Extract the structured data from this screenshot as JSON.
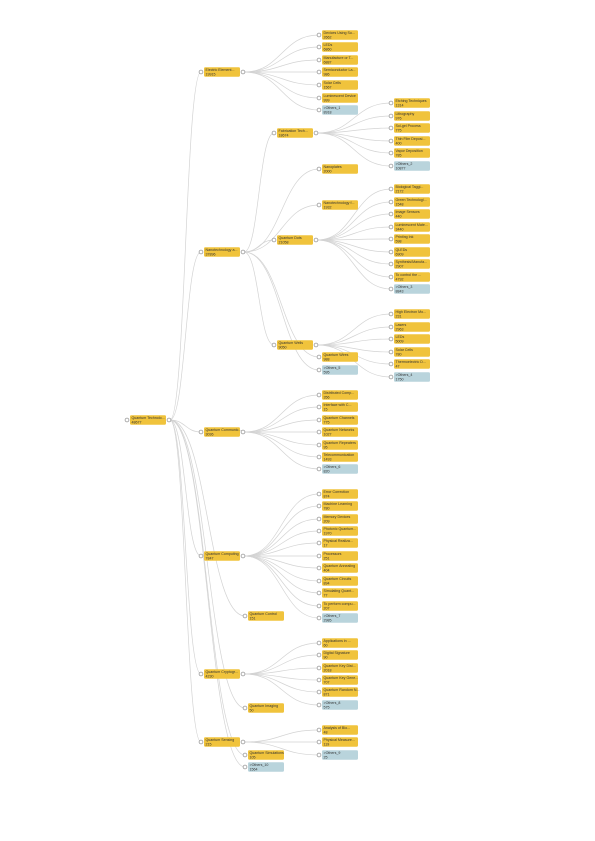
{
  "colors": {
    "node": "#f0c33c",
    "others_node": "#b9d4dc",
    "edge": "#d3d3d3",
    "dot_stroke": "#9a9a9a"
  },
  "tree": {
    "label": "Quantum Technolo...",
    "value": "48677",
    "children": [
      {
        "label": "Electric Element...",
        "value": "19915",
        "children": [
          {
            "label": "Devices Using Su...",
            "value": "2662"
          },
          {
            "label": "LEDs",
            "value": "6860"
          },
          {
            "label": "Manufacture or T...",
            "value": "6887"
          },
          {
            "label": "Semiconductor La...",
            "value": "986"
          },
          {
            "label": "Solar Cells",
            "value": "1567"
          },
          {
            "label": "Luminescent Device",
            "value": "999"
          },
          {
            "label": ">Others_1",
            "value": "8918",
            "others": true
          }
        ]
      },
      {
        "label": "Nanotechnology a...",
        "value": "37896",
        "children": [
          {
            "label": "Fabrication Tech...",
            "value": "18674",
            "children": [
              {
                "label": "Etching Techniques",
                "value": "1314"
              },
              {
                "label": "Lithography",
                "value": "976"
              },
              {
                "label": "Sol-gel Process",
                "value": "775"
              },
              {
                "label": "Thin Film Deposi...",
                "value": "400"
              },
              {
                "label": "Vapor Deposition",
                "value": "785"
              },
              {
                "label": ">Others_2",
                "value": "10877",
                "others": true
              }
            ]
          },
          {
            "label": "Nanoplates",
            "value": "2000"
          },
          {
            "label": "Nanotechnology f...",
            "value": "1932"
          },
          {
            "label": "Quantum Dots",
            "value": "21058",
            "children": [
              {
                "label": "Biological Taggi...",
                "value": "2172"
              },
              {
                "label": "Green Technologi...",
                "value": "1548"
              },
              {
                "label": "Image Sensors",
                "value": "440"
              },
              {
                "label": "Luminescent Mate...",
                "value": "3440"
              },
              {
                "label": "Printing Ink",
                "value": "598"
              },
              {
                "label": "QLEDs",
                "value": "6909"
              },
              {
                "label": "Synthesis/Manufa...",
                "value": "2907"
              },
              {
                "label": "To control the ...",
                "value": "4792"
              },
              {
                "label": ">Others_3",
                "value": "8843",
                "others": true
              }
            ]
          },
          {
            "label": "Quantum Wells",
            "value": "9050",
            "children": [
              {
                "label": "High Electron Mo...",
                "value": "231"
              },
              {
                "label": "Lasers",
                "value": "2963"
              },
              {
                "label": "LEDs",
                "value": "5009"
              },
              {
                "label": "Solar Cells",
                "value": "780"
              },
              {
                "label": "Thermoelectric D...",
                "value": "47"
              },
              {
                "label": ">Others_4",
                "value": "1750",
                "others": true
              }
            ]
          },
          {
            "label": "Quantum Wires",
            "value": "988"
          },
          {
            "label": ">Others_5",
            "value": "595",
            "others": true
          }
        ]
      },
      {
        "label": "Quantum Communic...",
        "value": "3036",
        "children": [
          {
            "label": "Distributed Comp...",
            "value": "356"
          },
          {
            "label": "Interface with C...",
            "value": "15"
          },
          {
            "label": "Quantum Channels",
            "value": "775"
          },
          {
            "label": "Quantum Networks",
            "value": "1027"
          },
          {
            "label": "Quantum Repeaters",
            "value": "95"
          },
          {
            "label": "Telecommunication",
            "value": "1493"
          },
          {
            "label": ">Others_6",
            "value": "820",
            "others": true
          }
        ]
      },
      {
        "label": "Quantum Computing",
        "value": "7847",
        "children": [
          {
            "label": "Error Correction",
            "value": "874"
          },
          {
            "label": "Machine Learning",
            "value": "780"
          },
          {
            "label": "Memory Devices",
            "value": "209"
          },
          {
            "label": "Photonic Quantum...",
            "value": "1970"
          },
          {
            "label": "Physical Realiza...",
            "value": "17"
          },
          {
            "label": "Processors",
            "value": "251"
          },
          {
            "label": "Quantum Annealing",
            "value": "404"
          },
          {
            "label": "Quantum Circuits",
            "value": "894"
          },
          {
            "label": "Simulating Quant...",
            "value": "77"
          },
          {
            "label": "To perform compu...",
            "value": "207"
          },
          {
            "label": ">Others_7",
            "value": "2985",
            "others": true
          }
        ]
      },
      {
        "label": "Quantum Control",
        "value": "151"
      },
      {
        "label": "Quantum Cryptogr...",
        "value": "4230",
        "children": [
          {
            "label": "Applications in ...",
            "value": "60"
          },
          {
            "label": "Digital Signature",
            "value": "90"
          },
          {
            "label": "Quantum Key Dist...",
            "value": "2018"
          },
          {
            "label": "Quantum Key Gene...",
            "value": "707"
          },
          {
            "label": "Quantum Random N...",
            "value": "871"
          },
          {
            "label": ">Others_8",
            "value": "575",
            "others": true
          }
        ]
      },
      {
        "label": "Quantum Imaging",
        "value": "50"
      },
      {
        "label": "Quantum Sensing",
        "value": "215",
        "children": [
          {
            "label": "Analysis of Bio...",
            "value": "48"
          },
          {
            "label": "Physical Measure...",
            "value": "119"
          },
          {
            "label": ">Others_9",
            "value": "25",
            "others": true
          }
        ]
      },
      {
        "label": "Quantum Simulations",
        "value": "105"
      },
      {
        "label": ">Others_10",
        "value": "1564",
        "others": true
      }
    ]
  }
}
